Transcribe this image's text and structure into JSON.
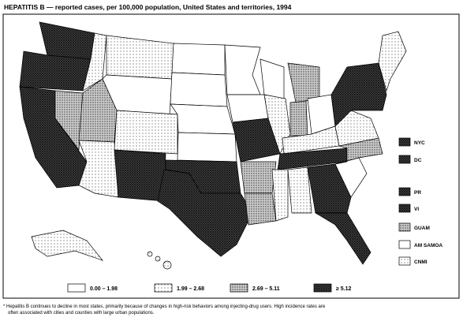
{
  "title": "HEPATITIS B — reported cases, per 100,000 population, United States and territories, 1994",
  "territories": [
    "NYC",
    "DC",
    "PR",
    "VI",
    "GUAM",
    "AM SAMOA",
    "CNMI"
  ],
  "legend": [
    "0.00 – 1.98",
    "1.99 – 2.68",
    "2.69 – 5.11",
    "≥ 5.12"
  ],
  "footnote": [
    "* Hepatitis B continues to decline in most states, primarily because of changes in high-risk behaviors among injecting-drug users. High incidence rates are",
    "often associated with cities and counties with large urban populations."
  ]
}
